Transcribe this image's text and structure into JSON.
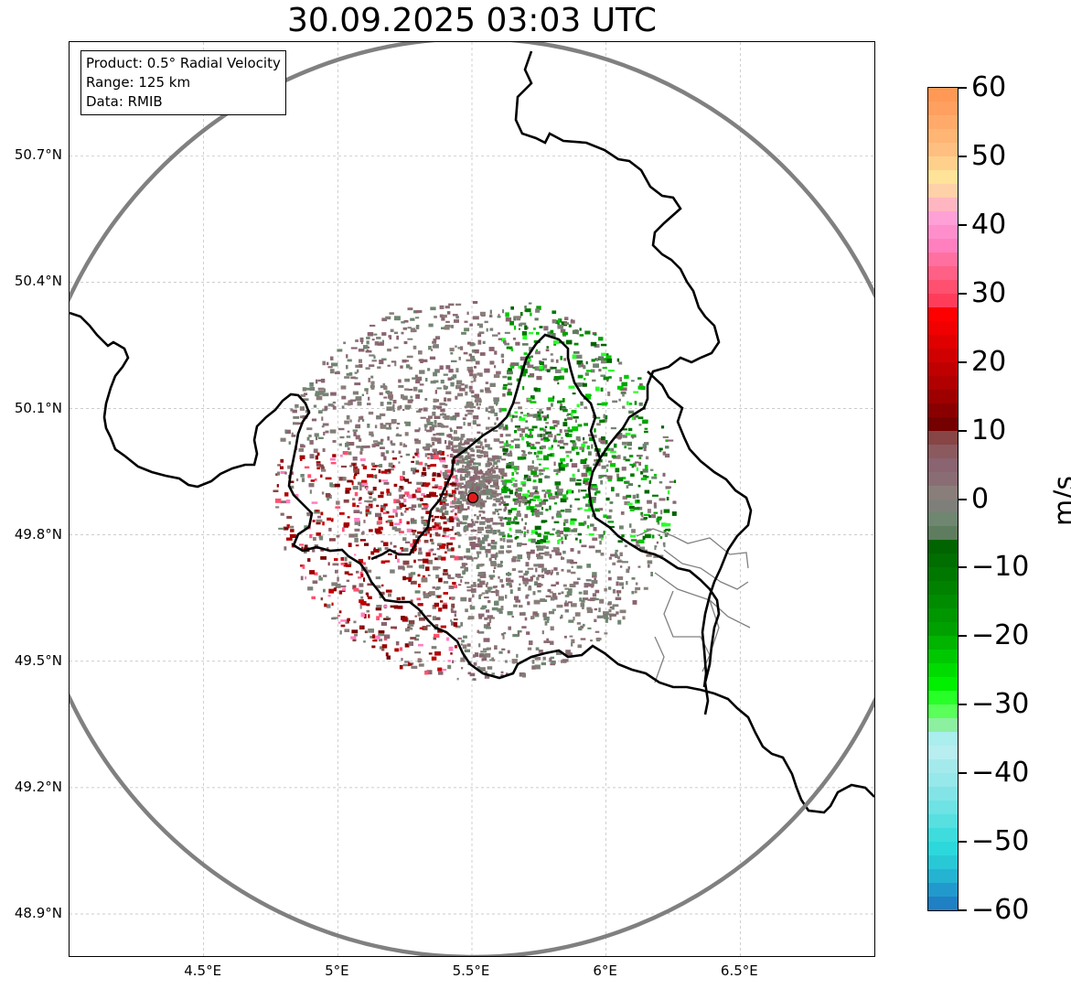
{
  "title": "30.09.2025 03:03 UTC",
  "info_box": {
    "line1": "Product: 0.5° Radial Velocity",
    "line2": "Range: 125 km",
    "line3": "Data: RMIB"
  },
  "map": {
    "extent_lon": [
      4.0,
      7.0
    ],
    "extent_lat": [
      48.8,
      50.97
    ],
    "radar_site": {
      "lon": 5.505,
      "lat": 49.914
    },
    "range_ring_km": 125,
    "lat_ticks": [
      {
        "value": 50.7,
        "label": "50.7°N"
      },
      {
        "value": 50.4,
        "label": "50.4°N"
      },
      {
        "value": 50.1,
        "label": "50.1°N"
      },
      {
        "value": 49.8,
        "label": "49.8°N"
      },
      {
        "value": 49.5,
        "label": "49.5°N"
      },
      {
        "value": 49.2,
        "label": "49.2°N"
      },
      {
        "value": 48.9,
        "label": "48.9°N"
      }
    ],
    "lon_ticks": [
      {
        "value": 4.5,
        "label": "4.5°E"
      },
      {
        "value": 5.0,
        "label": "5°E"
      },
      {
        "value": 5.5,
        "label": "5.5°E"
      },
      {
        "value": 6.0,
        "label": "6°E"
      },
      {
        "value": 6.5,
        "label": "6.5°E"
      }
    ],
    "colors": {
      "border": "#000000",
      "sub_border": "#808080",
      "ring": "#808080",
      "grid": "#bbbbbb",
      "site": "#e31a1c"
    }
  },
  "colorbar": {
    "unit": "m/s",
    "vmin": -60,
    "vmax": 60,
    "ticks": [
      {
        "value": 60,
        "label": "60"
      },
      {
        "value": 50,
        "label": "50"
      },
      {
        "value": 40,
        "label": "40"
      },
      {
        "value": 30,
        "label": "30"
      },
      {
        "value": 20,
        "label": "20"
      },
      {
        "value": 10,
        "label": "10"
      },
      {
        "value": 0,
        "label": "0"
      },
      {
        "value": -10,
        "label": "−10"
      },
      {
        "value": -20,
        "label": "−20"
      },
      {
        "value": -30,
        "label": "−30"
      },
      {
        "value": -40,
        "label": "−40"
      },
      {
        "value": -50,
        "label": "−50"
      },
      {
        "value": -60,
        "label": "−60"
      }
    ],
    "segments": [
      {
        "from": 58,
        "to": 60,
        "color": "#ff9955"
      },
      {
        "from": 56,
        "to": 58,
        "color": "#ffa060"
      },
      {
        "from": 54,
        "to": 56,
        "color": "#ffaa6a"
      },
      {
        "from": 52,
        "to": 54,
        "color": "#ffb574"
      },
      {
        "from": 50,
        "to": 52,
        "color": "#ffbf80"
      },
      {
        "from": 48,
        "to": 50,
        "color": "#ffd08c"
      },
      {
        "from": 46,
        "to": 48,
        "color": "#ffe399"
      },
      {
        "from": 44,
        "to": 46,
        "color": "#ffd1a8"
      },
      {
        "from": 42,
        "to": 44,
        "color": "#ffb6c1"
      },
      {
        "from": 40,
        "to": 42,
        "color": "#ffa1d6"
      },
      {
        "from": 38,
        "to": 40,
        "color": "#ff8fcc"
      },
      {
        "from": 36,
        "to": 38,
        "color": "#ff7fbf"
      },
      {
        "from": 34,
        "to": 36,
        "color": "#ff70a0"
      },
      {
        "from": 32,
        "to": 34,
        "color": "#ff6085"
      },
      {
        "from": 30,
        "to": 32,
        "color": "#ff5070"
      },
      {
        "from": 28,
        "to": 30,
        "color": "#ff3d5a"
      },
      {
        "from": 26,
        "to": 28,
        "color": "#ff0000"
      },
      {
        "from": 24,
        "to": 26,
        "color": "#f00000"
      },
      {
        "from": 22,
        "to": 24,
        "color": "#e00000"
      },
      {
        "from": 20,
        "to": 22,
        "color": "#d00000"
      },
      {
        "from": 18,
        "to": 20,
        "color": "#c00000"
      },
      {
        "from": 16,
        "to": 18,
        "color": "#b00000"
      },
      {
        "from": 14,
        "to": 16,
        "color": "#9e0000"
      },
      {
        "from": 12,
        "to": 14,
        "color": "#8a0000"
      },
      {
        "from": 10,
        "to": 12,
        "color": "#740000"
      },
      {
        "from": 8,
        "to": 10,
        "color": "#874545"
      },
      {
        "from": 6,
        "to": 8,
        "color": "#8b5a5e"
      },
      {
        "from": 4,
        "to": 6,
        "color": "#8a6470"
      },
      {
        "from": 2,
        "to": 4,
        "color": "#8a6d74"
      },
      {
        "from": 0,
        "to": 2,
        "color": "#8a7e7a"
      },
      {
        "from": -2,
        "to": 0,
        "color": "#7f7f7a"
      },
      {
        "from": -4,
        "to": -2,
        "color": "#6f8670"
      },
      {
        "from": -6,
        "to": -4,
        "color": "#5e7d5e"
      },
      {
        "from": -8,
        "to": -6,
        "color": "#006400"
      },
      {
        "from": -10,
        "to": -8,
        "color": "#006e00"
      },
      {
        "from": -12,
        "to": -10,
        "color": "#007800"
      },
      {
        "from": -14,
        "to": -12,
        "color": "#008200"
      },
      {
        "from": -16,
        "to": -14,
        "color": "#008c00"
      },
      {
        "from": -18,
        "to": -16,
        "color": "#009600"
      },
      {
        "from": -20,
        "to": -18,
        "color": "#00a000"
      },
      {
        "from": -22,
        "to": -20,
        "color": "#00b400"
      },
      {
        "from": -24,
        "to": -22,
        "color": "#00c800"
      },
      {
        "from": -26,
        "to": -24,
        "color": "#00dc00"
      },
      {
        "from": -28,
        "to": -26,
        "color": "#00f000"
      },
      {
        "from": -30,
        "to": -28,
        "color": "#28ff28"
      },
      {
        "from": -32,
        "to": -30,
        "color": "#5aff5a"
      },
      {
        "from": -34,
        "to": -32,
        "color": "#8cf0a0"
      },
      {
        "from": -36,
        "to": -34,
        "color": "#aaeeee"
      },
      {
        "from": -38,
        "to": -36,
        "color": "#b8eef0"
      },
      {
        "from": -40,
        "to": -38,
        "color": "#a4eaec"
      },
      {
        "from": -42,
        "to": -40,
        "color": "#96e8ea"
      },
      {
        "from": -44,
        "to": -42,
        "color": "#82e4e6"
      },
      {
        "from": -46,
        "to": -44,
        "color": "#6ee2e4"
      },
      {
        "from": -48,
        "to": -46,
        "color": "#58dfe0"
      },
      {
        "from": -50,
        "to": -48,
        "color": "#3edcdc"
      },
      {
        "from": -52,
        "to": -50,
        "color": "#2cd8dc"
      },
      {
        "from": -54,
        "to": -52,
        "color": "#28c8d6"
      },
      {
        "from": -56,
        "to": -54,
        "color": "#25b3d2"
      },
      {
        "from": -58,
        "to": -56,
        "color": "#2299cc"
      },
      {
        "from": -60,
        "to": -58,
        "color": "#1f80c4"
      }
    ]
  }
}
